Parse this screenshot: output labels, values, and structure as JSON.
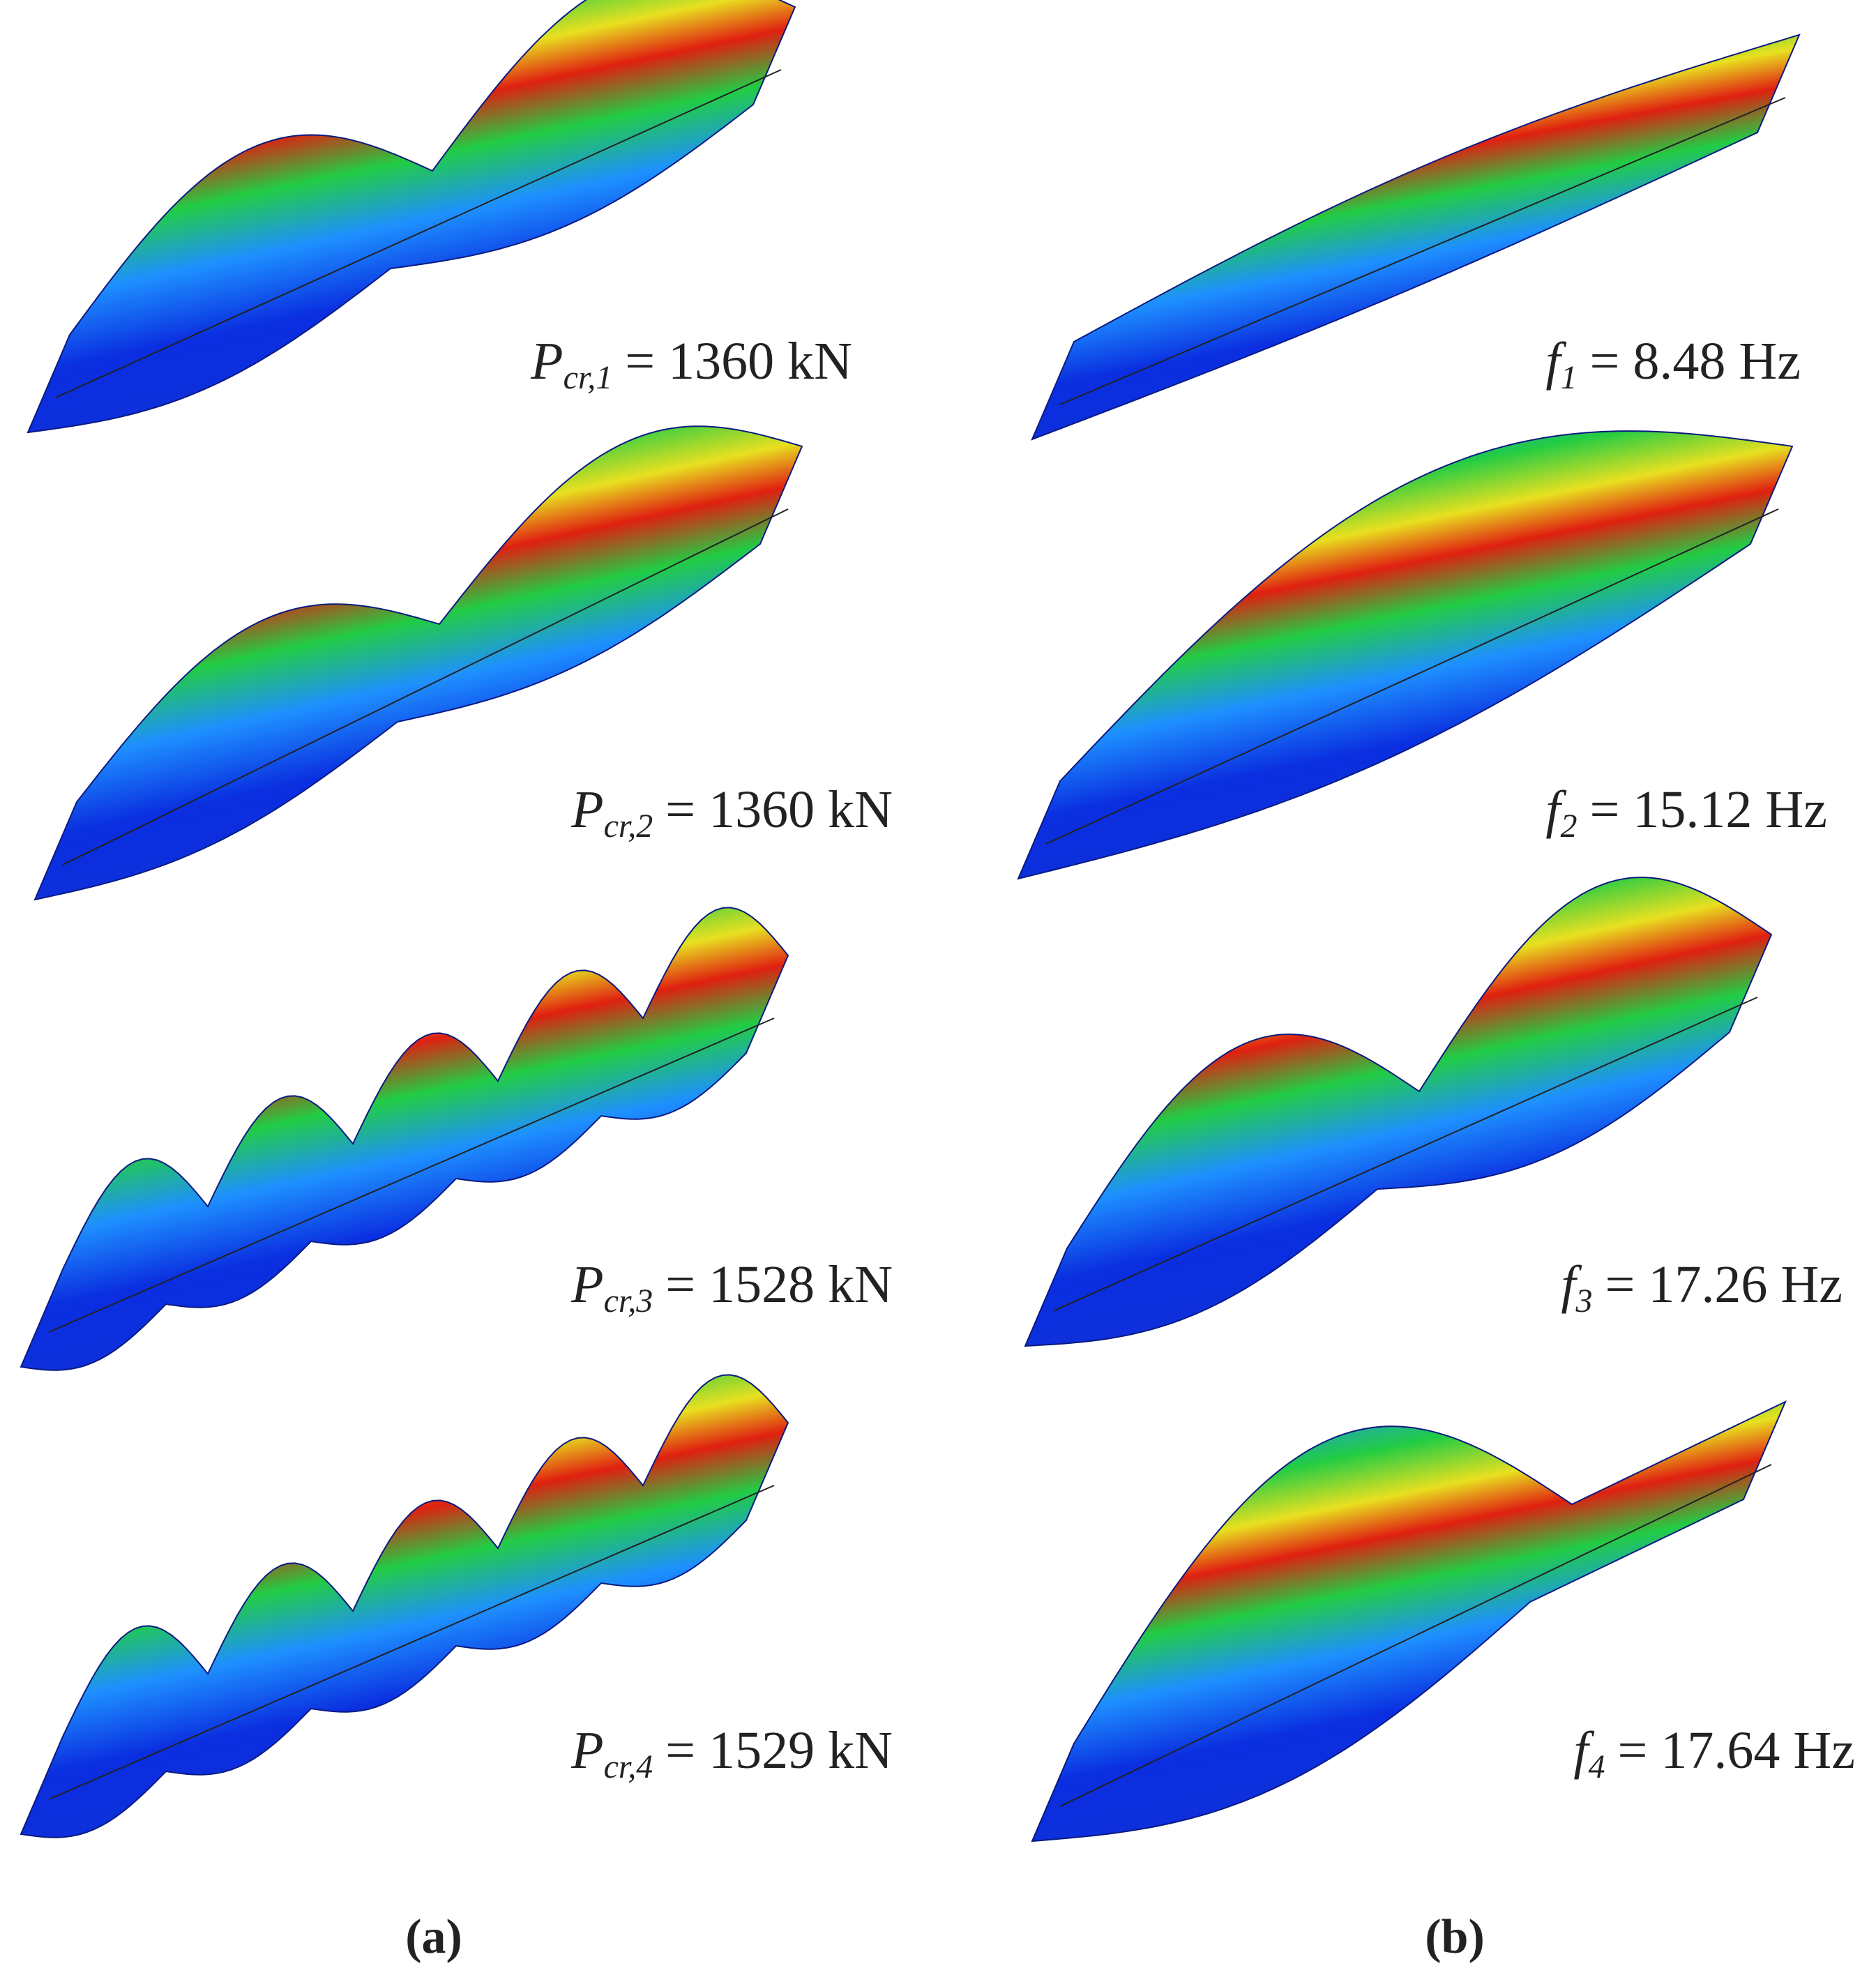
{
  "panels": [
    {
      "caption": "(a)",
      "items": [
        {
          "symbol": "P",
          "subscript": "cr,1",
          "text": "= 1360 kN"
        },
        {
          "symbol": "P",
          "subscript": "cr,2",
          "text": "= 1360 kN"
        },
        {
          "symbol": "P",
          "subscript": "cr,3",
          "text": "= 1528 kN"
        },
        {
          "symbol": "P",
          "subscript": "cr,4",
          "text": "= 1529 kN"
        }
      ]
    },
    {
      "caption": "(b)",
      "items": [
        {
          "symbol": "f",
          "subscript": "1",
          "text": "= 8.48 Hz"
        },
        {
          "symbol": "f",
          "subscript": "2",
          "text": "= 15.12 Hz"
        },
        {
          "symbol": "f",
          "subscript": "3",
          "text": "= 17.26 Hz"
        },
        {
          "symbol": "f",
          "subscript": "4",
          "text": "= 17.64 Hz"
        }
      ]
    }
  ]
}
